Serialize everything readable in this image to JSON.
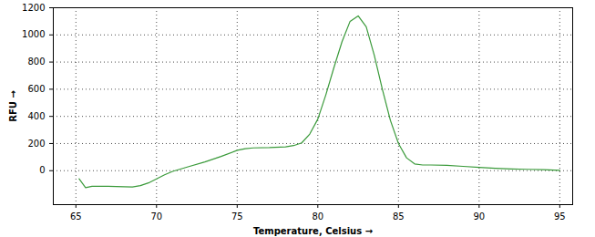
{
  "chart_data": {
    "type": "line",
    "x_label": "Temperature, Celsius",
    "y_label": "RFU",
    "x": [
      65.2,
      65.6,
      66,
      67,
      68,
      68.5,
      69,
      69.5,
      70,
      70.5,
      71,
      72,
      73,
      74,
      75,
      75.5,
      76,
      77,
      78,
      78.5,
      79,
      79.5,
      80,
      80.5,
      81,
      81.5,
      82,
      82.5,
      83,
      83.5,
      84,
      84.5,
      85,
      85.5,
      86,
      86.5,
      87,
      88,
      89,
      90,
      91,
      92,
      93,
      94,
      95
    ],
    "values": [
      -60,
      -125,
      -115,
      -115,
      -118,
      -120,
      -110,
      -90,
      -60,
      -30,
      -5,
      30,
      65,
      105,
      150,
      162,
      168,
      170,
      175,
      185,
      205,
      270,
      380,
      560,
      760,
      950,
      1100,
      1140,
      1060,
      850,
      600,
      370,
      200,
      95,
      50,
      42,
      42,
      40,
      32,
      25,
      18,
      13,
      10,
      8,
      3
    ],
    "color": "#3a9a3a",
    "xlim": [
      63.6,
      95.8
    ],
    "xticks": [
      65,
      70,
      75,
      80,
      85,
      90,
      95
    ],
    "ylim": [
      -250,
      1200
    ],
    "yticks": [
      0,
      200,
      400,
      600,
      800,
      1000,
      1200
    ],
    "grid": true
  }
}
